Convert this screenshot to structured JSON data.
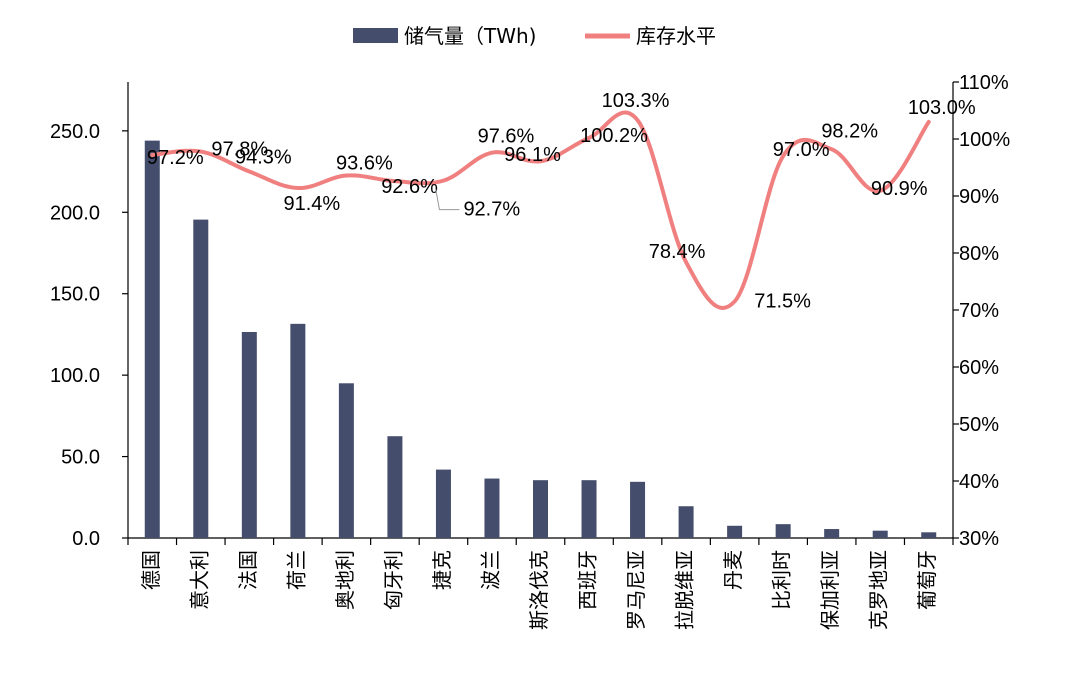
{
  "chart_data": {
    "type": "bar",
    "categories": [
      "德国",
      "意大利",
      "法国",
      "荷兰",
      "奥地利",
      "匈牙利",
      "捷克",
      "波兰",
      "斯洛伐克",
      "西班牙",
      "罗马尼亚",
      "拉脱维亚",
      "丹麦",
      "比利时",
      "保加利亚",
      "克罗地亚",
      "葡萄牙"
    ],
    "series": [
      {
        "name": "储气量（TWh)",
        "type": "bar",
        "axis": "left",
        "color": "#444d6b",
        "values": [
          244.0,
          195.5,
          126.5,
          131.5,
          95.0,
          62.5,
          42.0,
          36.5,
          35.5,
          35.5,
          34.5,
          19.5,
          7.5,
          8.5,
          5.5,
          4.5,
          3.5
        ]
      },
      {
        "name": "库存水平",
        "type": "line",
        "axis": "right",
        "color": "#f08080",
        "values": [
          97.2,
          97.8,
          94.3,
          91.4,
          93.6,
          92.6,
          92.7,
          97.6,
          96.1,
          100.2,
          103.3,
          78.4,
          71.5,
          97.0,
          98.2,
          90.9,
          103.0
        ],
        "labels": [
          "97.2%",
          "97.8%",
          "94.3%",
          "91.4%",
          "93.6%",
          "92.6%",
          "92.7%",
          "97.6%",
          "96.1%",
          "100.2%",
          "103.3%",
          "78.4%",
          "71.5%",
          "97.0%",
          "98.2%",
          "90.9%",
          "103.0%"
        ]
      }
    ],
    "y_left": {
      "min": 0,
      "max": 280,
      "ticks": [
        "0.0",
        "50.0",
        "100.0",
        "150.0",
        "200.0",
        "250.0"
      ]
    },
    "y_right": {
      "min": 30,
      "max": 110,
      "ticks": [
        "30%",
        "40%",
        "50%",
        "60%",
        "70%",
        "80%",
        "90%",
        "100%",
        "110%"
      ]
    },
    "legend": "top-center",
    "grid": false
  }
}
